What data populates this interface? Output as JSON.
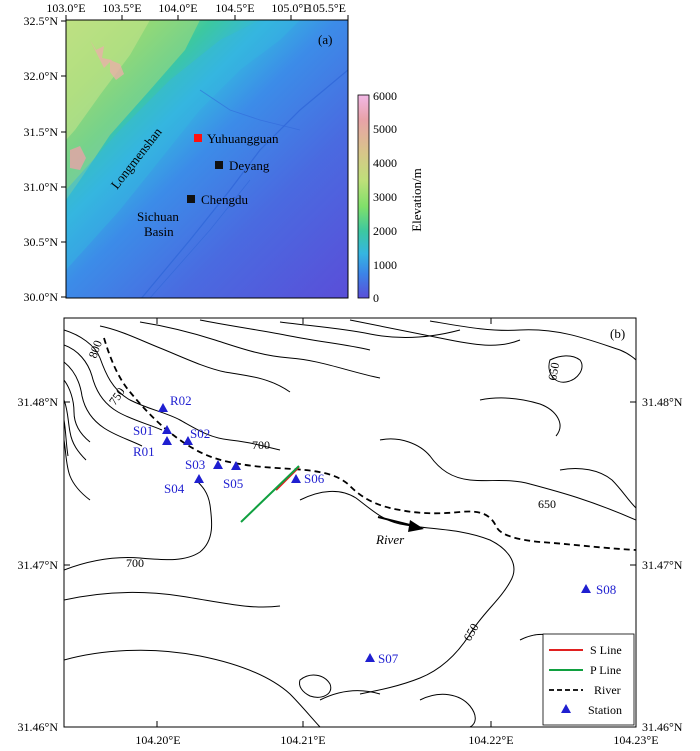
{
  "panel_a": {
    "label": "(a)",
    "lon_ticks": [
      "103.0°E",
      "103.5°E",
      "104.0°E",
      "104.5°E",
      "105.0°E",
      "105.5°E"
    ],
    "lat_ticks": [
      "32.5°N",
      "32.0°N",
      "31.5°N",
      "31.0°N",
      "30.5°N",
      "30.0°N"
    ],
    "places": [
      {
        "name": "Yuhuangguan",
        "marker": "red-square"
      },
      {
        "name": "Deyang",
        "marker": "black-square"
      },
      {
        "name": "Chengdu",
        "marker": "black-square"
      }
    ],
    "region_labels": {
      "mountains": "Longmenshan",
      "basin_1": "Sichuan",
      "basin_2": "Basin"
    },
    "colorbar": {
      "title": "Elevation/m",
      "ticks": [
        "6000",
        "5000",
        "4000",
        "3000",
        "2000",
        "1000",
        "0"
      ],
      "colors": [
        "#f2b8e6",
        "#e8a2a8",
        "#d8c48a",
        "#bfe07a",
        "#7fe06a",
        "#3cc8a0",
        "#35b6e0",
        "#3c84e8",
        "#5a4ed8"
      ]
    }
  },
  "panel_b": {
    "label": "(b)",
    "lon_ticks": [
      "104.20°E",
      "104.21°E",
      "104.22°E",
      "104.23°E"
    ],
    "lat_ticks": [
      "31.48°N",
      "31.47°N",
      "31.46°N"
    ],
    "contour_labels": [
      "800",
      "750",
      "700",
      "700",
      "650",
      "650",
      "650"
    ],
    "stations": [
      {
        "id": "R02"
      },
      {
        "id": "S01"
      },
      {
        "id": "R01"
      },
      {
        "id": "S02"
      },
      {
        "id": "S03"
      },
      {
        "id": "S04"
      },
      {
        "id": "S05"
      },
      {
        "id": "S06"
      },
      {
        "id": "S07"
      },
      {
        "id": "S08"
      }
    ],
    "river_label": "River",
    "legend": [
      {
        "label": "S Line",
        "color": "#e02020"
      },
      {
        "label": "P Line",
        "color": "#10a040"
      },
      {
        "label": "River",
        "color": "#000000"
      },
      {
        "label": "Station",
        "color": "#1f1fd0"
      }
    ]
  }
}
